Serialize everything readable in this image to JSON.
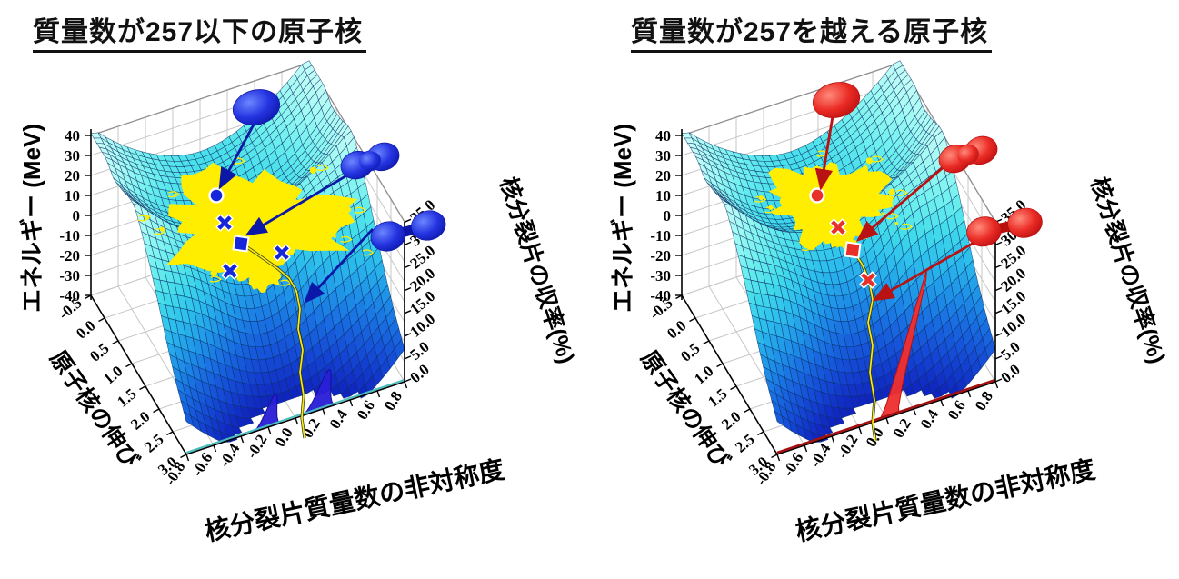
{
  "figure": {
    "background": "#ffffff",
    "panels": [
      {
        "title": "質量数が257以下の原子核",
        "accent": "#1626d9",
        "accent_dark": "#0b17a6",
        "blob_light": "#6b86ff",
        "blob_mid": "#2433e0",
        "blob_dark": "#0c17a8",
        "cloud_color": "#ffee00",
        "trajectory_color": "#ffe81a",
        "trajectory_edge": "#2a3a10",
        "front_edge_color": "#49bdbd",
        "peak_fill": "#2a1fd6",
        "peak_stroke": "#151099",
        "energy_axis": {
          "label": "エネルギー (MeV)",
          "ticks": [
            "40",
            "30",
            "20",
            "10",
            "0",
            "-10",
            "-20",
            "-30",
            "-40"
          ]
        },
        "elongation_axis": {
          "label": "原子核の伸び",
          "ticks": [
            "-0.5",
            "0.0",
            "0.5",
            "1.0",
            "1.5",
            "2.0",
            "2.5",
            "3.0"
          ]
        },
        "asymmetry_axis": {
          "label": "核分裂片質量数の非対称度",
          "ticks": [
            "-0.8",
            "-0.6",
            "-0.4",
            "-0.2",
            "0.0",
            "0.2",
            "0.4",
            "0.6",
            "0.8"
          ]
        },
        "yield_axis": {
          "label": "核分裂片の収率(%)",
          "ticks": [
            "0.0",
            "5.0",
            "10.0",
            "15.0",
            "20.0",
            "25.0",
            "30.0",
            "35.0"
          ]
        },
        "markers": [
          {
            "shape": "circle",
            "name": "ground-state-marker"
          },
          {
            "shape": "cross",
            "name": "saddle-marker-1"
          },
          {
            "shape": "square",
            "name": "secondary-minimum-marker"
          },
          {
            "shape": "cross",
            "name": "saddle-marker-2"
          },
          {
            "shape": "cross",
            "name": "saddle-marker-3"
          }
        ],
        "nuclei": [
          {
            "shape": "sphere",
            "name": "spherical-nucleus"
          },
          {
            "shape": "peanut",
            "name": "necked-nucleus"
          },
          {
            "shape": "dumbbell",
            "name": "scission-nucleus"
          }
        ],
        "yield_peaks": [
          {
            "asymmetry": -0.21,
            "yield_pct": 7.5,
            "width": 0.05
          },
          {
            "asymmetry": 0.17,
            "yield_pct": 9,
            "width": 0.06
          }
        ]
      },
      {
        "title": "質量数が257を越える原子核",
        "accent": "#e8302a",
        "accent_dark": "#b81212",
        "blob_light": "#ff8a7a",
        "blob_mid": "#ea2b25",
        "blob_dark": "#b80f0f",
        "cloud_color": "#ffee00",
        "trajectory_color": "#ffe81a",
        "trajectory_edge": "#2a3a10",
        "front_edge_color": "#a31010",
        "peak_fill": "#ee3030",
        "peak_stroke": "#bb0f0f",
        "energy_axis": {
          "label": "エネルギー (MeV)",
          "ticks": [
            "40",
            "30",
            "20",
            "10",
            "0",
            "-10",
            "-20",
            "-30",
            "-40"
          ]
        },
        "elongation_axis": {
          "label": "原子核の伸び",
          "ticks": [
            "-0.5",
            "0.0",
            "0.5",
            "1.0",
            "1.5",
            "2.0",
            "2.5",
            "3.0"
          ]
        },
        "asymmetry_axis": {
          "label": "核分裂片質量数の非対称度",
          "ticks": [
            "-0.8",
            "-0.6",
            "-0.4",
            "-0.2",
            "0.0",
            "0.2",
            "0.4",
            "0.6",
            "0.8"
          ]
        },
        "yield_axis": {
          "label": "核分裂片の収率(%)",
          "ticks": [
            "0.0",
            "5.0",
            "10.0",
            "15.0",
            "20.0",
            "25.0",
            "30.0",
            "35.0"
          ]
        },
        "markers": [
          {
            "shape": "circle",
            "name": "ground-state-marker"
          },
          {
            "shape": "cross",
            "name": "saddle-marker-1"
          },
          {
            "shape": "square",
            "name": "secondary-minimum-marker"
          },
          {
            "shape": "cross",
            "name": "saddle-marker-2"
          }
        ],
        "nuclei": [
          {
            "shape": "sphere",
            "name": "spherical-nucleus"
          },
          {
            "shape": "peanut",
            "name": "necked-nucleus"
          },
          {
            "shape": "dumbbell",
            "name": "scission-nucleus"
          }
        ],
        "yield_peaks": [
          {
            "asymmetry": 0.02,
            "yield_pct": 33,
            "width": 0.032
          }
        ]
      }
    ]
  },
  "chart_data": [
    {
      "type": "surface",
      "title": "質量数が257以下の原子核",
      "x_axis": {
        "label": "核分裂片質量数の非対称度",
        "range": [
          -0.8,
          0.8
        ],
        "ticks": [
          -0.8,
          -0.6,
          -0.4,
          -0.2,
          0.0,
          0.2,
          0.4,
          0.6,
          0.8
        ]
      },
      "depth_axis": {
        "label": "原子核の伸び",
        "range": [
          -0.5,
          3.0
        ],
        "ticks": [
          -0.5,
          0.0,
          0.5,
          1.0,
          1.5,
          2.0,
          2.5,
          3.0
        ]
      },
      "z_axis": {
        "label": "エネルギー (MeV)",
        "range": [
          -40,
          40
        ],
        "ticks": [
          40,
          30,
          20,
          10,
          0,
          -10,
          -20,
          -30,
          -40
        ]
      },
      "yield_axis": {
        "label": "核分裂片の収率(%)",
        "range": [
          0.0,
          35.0
        ],
        "ticks": [
          0.0,
          5.0,
          10.0,
          15.0,
          20.0,
          25.0,
          30.0,
          35.0
        ]
      },
      "surface_style": "cyan-to-blue potential-energy valley with black mesh, yellow Langevin trajectory cloud at ground-state minimum, yellow path descending the fission valley",
      "annotations": [
        {
          "marker": "filled-circle",
          "color": "blue",
          "location": "ground-state minimum inside yellow cloud",
          "icon": "spherical nucleus blob"
        },
        {
          "marker": "cross",
          "color": "blue",
          "count": 3,
          "location": "saddle points along fission path"
        },
        {
          "marker": "filled-square",
          "color": "blue",
          "location": "secondary minimum",
          "icon": "necked nucleus blob"
        },
        {
          "marker": "arrow",
          "color": "blue",
          "location": "pointing down the fission valley",
          "icon": "two-fragment scission nucleus blob"
        }
      ],
      "yield_distribution": {
        "shape": "asymmetric double peak",
        "color": "blue",
        "peaks": [
          {
            "asymmetry": -0.21,
            "yield_pct": 7.5
          },
          {
            "asymmetry": 0.17,
            "yield_pct": 9
          }
        ]
      }
    },
    {
      "type": "surface",
      "title": "質量数が257を越える原子核",
      "x_axis": {
        "label": "核分裂片質量数の非対称度",
        "range": [
          -0.8,
          0.8
        ],
        "ticks": [
          -0.8,
          -0.6,
          -0.4,
          -0.2,
          0.0,
          0.2,
          0.4,
          0.6,
          0.8
        ]
      },
      "depth_axis": {
        "label": "原子核の伸び",
        "range": [
          -0.5,
          3.0
        ],
        "ticks": [
          -0.5,
          0.0,
          0.5,
          1.0,
          1.5,
          2.0,
          2.5,
          3.0
        ]
      },
      "z_axis": {
        "label": "エネルギー (MeV)",
        "range": [
          -40,
          40
        ],
        "ticks": [
          40,
          30,
          20,
          10,
          0,
          -10,
          -20,
          -30,
          -40
        ]
      },
      "yield_axis": {
        "label": "核分裂片の収率(%)",
        "range": [
          0.0,
          35.0
        ],
        "ticks": [
          0.0,
          5.0,
          10.0,
          15.0,
          20.0,
          25.0,
          30.0,
          35.0
        ]
      },
      "surface_style": "cyan-to-blue potential-energy valley with black mesh, yellow Langevin trajectory cloud at ground-state minimum, yellow path descending the fission valley",
      "annotations": [
        {
          "marker": "filled-circle",
          "color": "red",
          "location": "ground-state minimum inside yellow cloud",
          "icon": "spherical nucleus blob"
        },
        {
          "marker": "cross",
          "color": "red",
          "count": 2,
          "location": "saddle points along fission path"
        },
        {
          "marker": "filled-square",
          "color": "red",
          "location": "secondary minimum",
          "icon": "necked nucleus blob"
        },
        {
          "marker": "arrow",
          "color": "red",
          "location": "pointing down the fission valley",
          "icon": "two-fragment scission nucleus blob"
        }
      ],
      "yield_distribution": {
        "shape": "symmetric single narrow peak",
        "color": "red",
        "peaks": [
          {
            "asymmetry": 0.02,
            "yield_pct": 33
          }
        ]
      }
    }
  ]
}
